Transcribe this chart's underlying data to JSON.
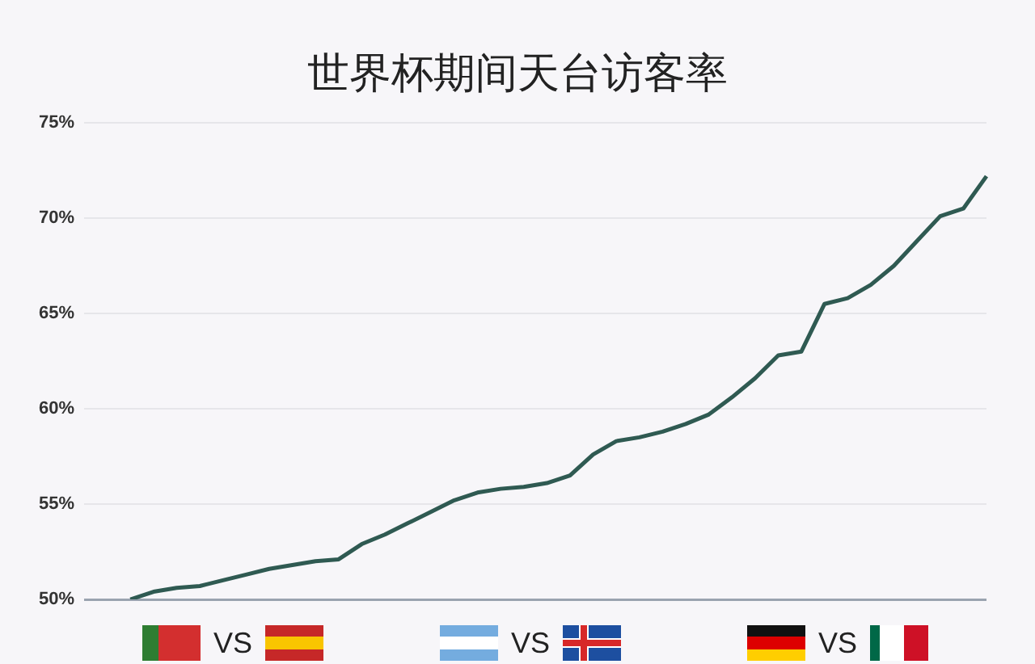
{
  "chart_data": {
    "type": "line",
    "title": "世界杯期间天台访客率",
    "categories": [
      null,
      null,
      null,
      null,
      null,
      null,
      null,
      null,
      null,
      null,
      null,
      null,
      null,
      null,
      null,
      null,
      null,
      null,
      null,
      null,
      null,
      null,
      null,
      null,
      null,
      null,
      null,
      null,
      null,
      null,
      null,
      null,
      null,
      null,
      null,
      null,
      null,
      null,
      null,
      null
    ],
    "series": [
      {
        "color": "#2f5a52",
        "values": [
          null,
          null,
          50.0,
          50.4,
          50.6,
          50.7,
          51.0,
          51.3,
          51.6,
          51.8,
          52.0,
          52.1,
          52.9,
          53.4,
          54.0,
          54.6,
          55.2,
          55.6,
          55.8,
          55.9,
          56.1,
          56.5,
          57.6,
          58.3,
          58.5,
          58.8,
          59.2,
          59.7,
          60.6,
          61.6,
          62.8,
          63.0,
          65.5,
          65.8,
          66.5,
          67.5,
          68.8,
          70.1,
          70.5,
          72.2
        ]
      }
    ],
    "ylim": [
      50,
      75
    ],
    "yticks": [
      {
        "value": 50,
        "label": "50%"
      },
      {
        "value": 55,
        "label": "55%"
      },
      {
        "value": 60,
        "label": "60%"
      },
      {
        "value": 65,
        "label": "65%"
      },
      {
        "value": 70,
        "label": "70%"
      },
      {
        "value": 75,
        "label": "75%"
      }
    ],
    "grid": "y",
    "legend": false,
    "marker": "none",
    "line_style": "solid",
    "tick_labels": "y",
    "annotations": [
      "VS",
      "VS",
      "VS"
    ]
  }
}
